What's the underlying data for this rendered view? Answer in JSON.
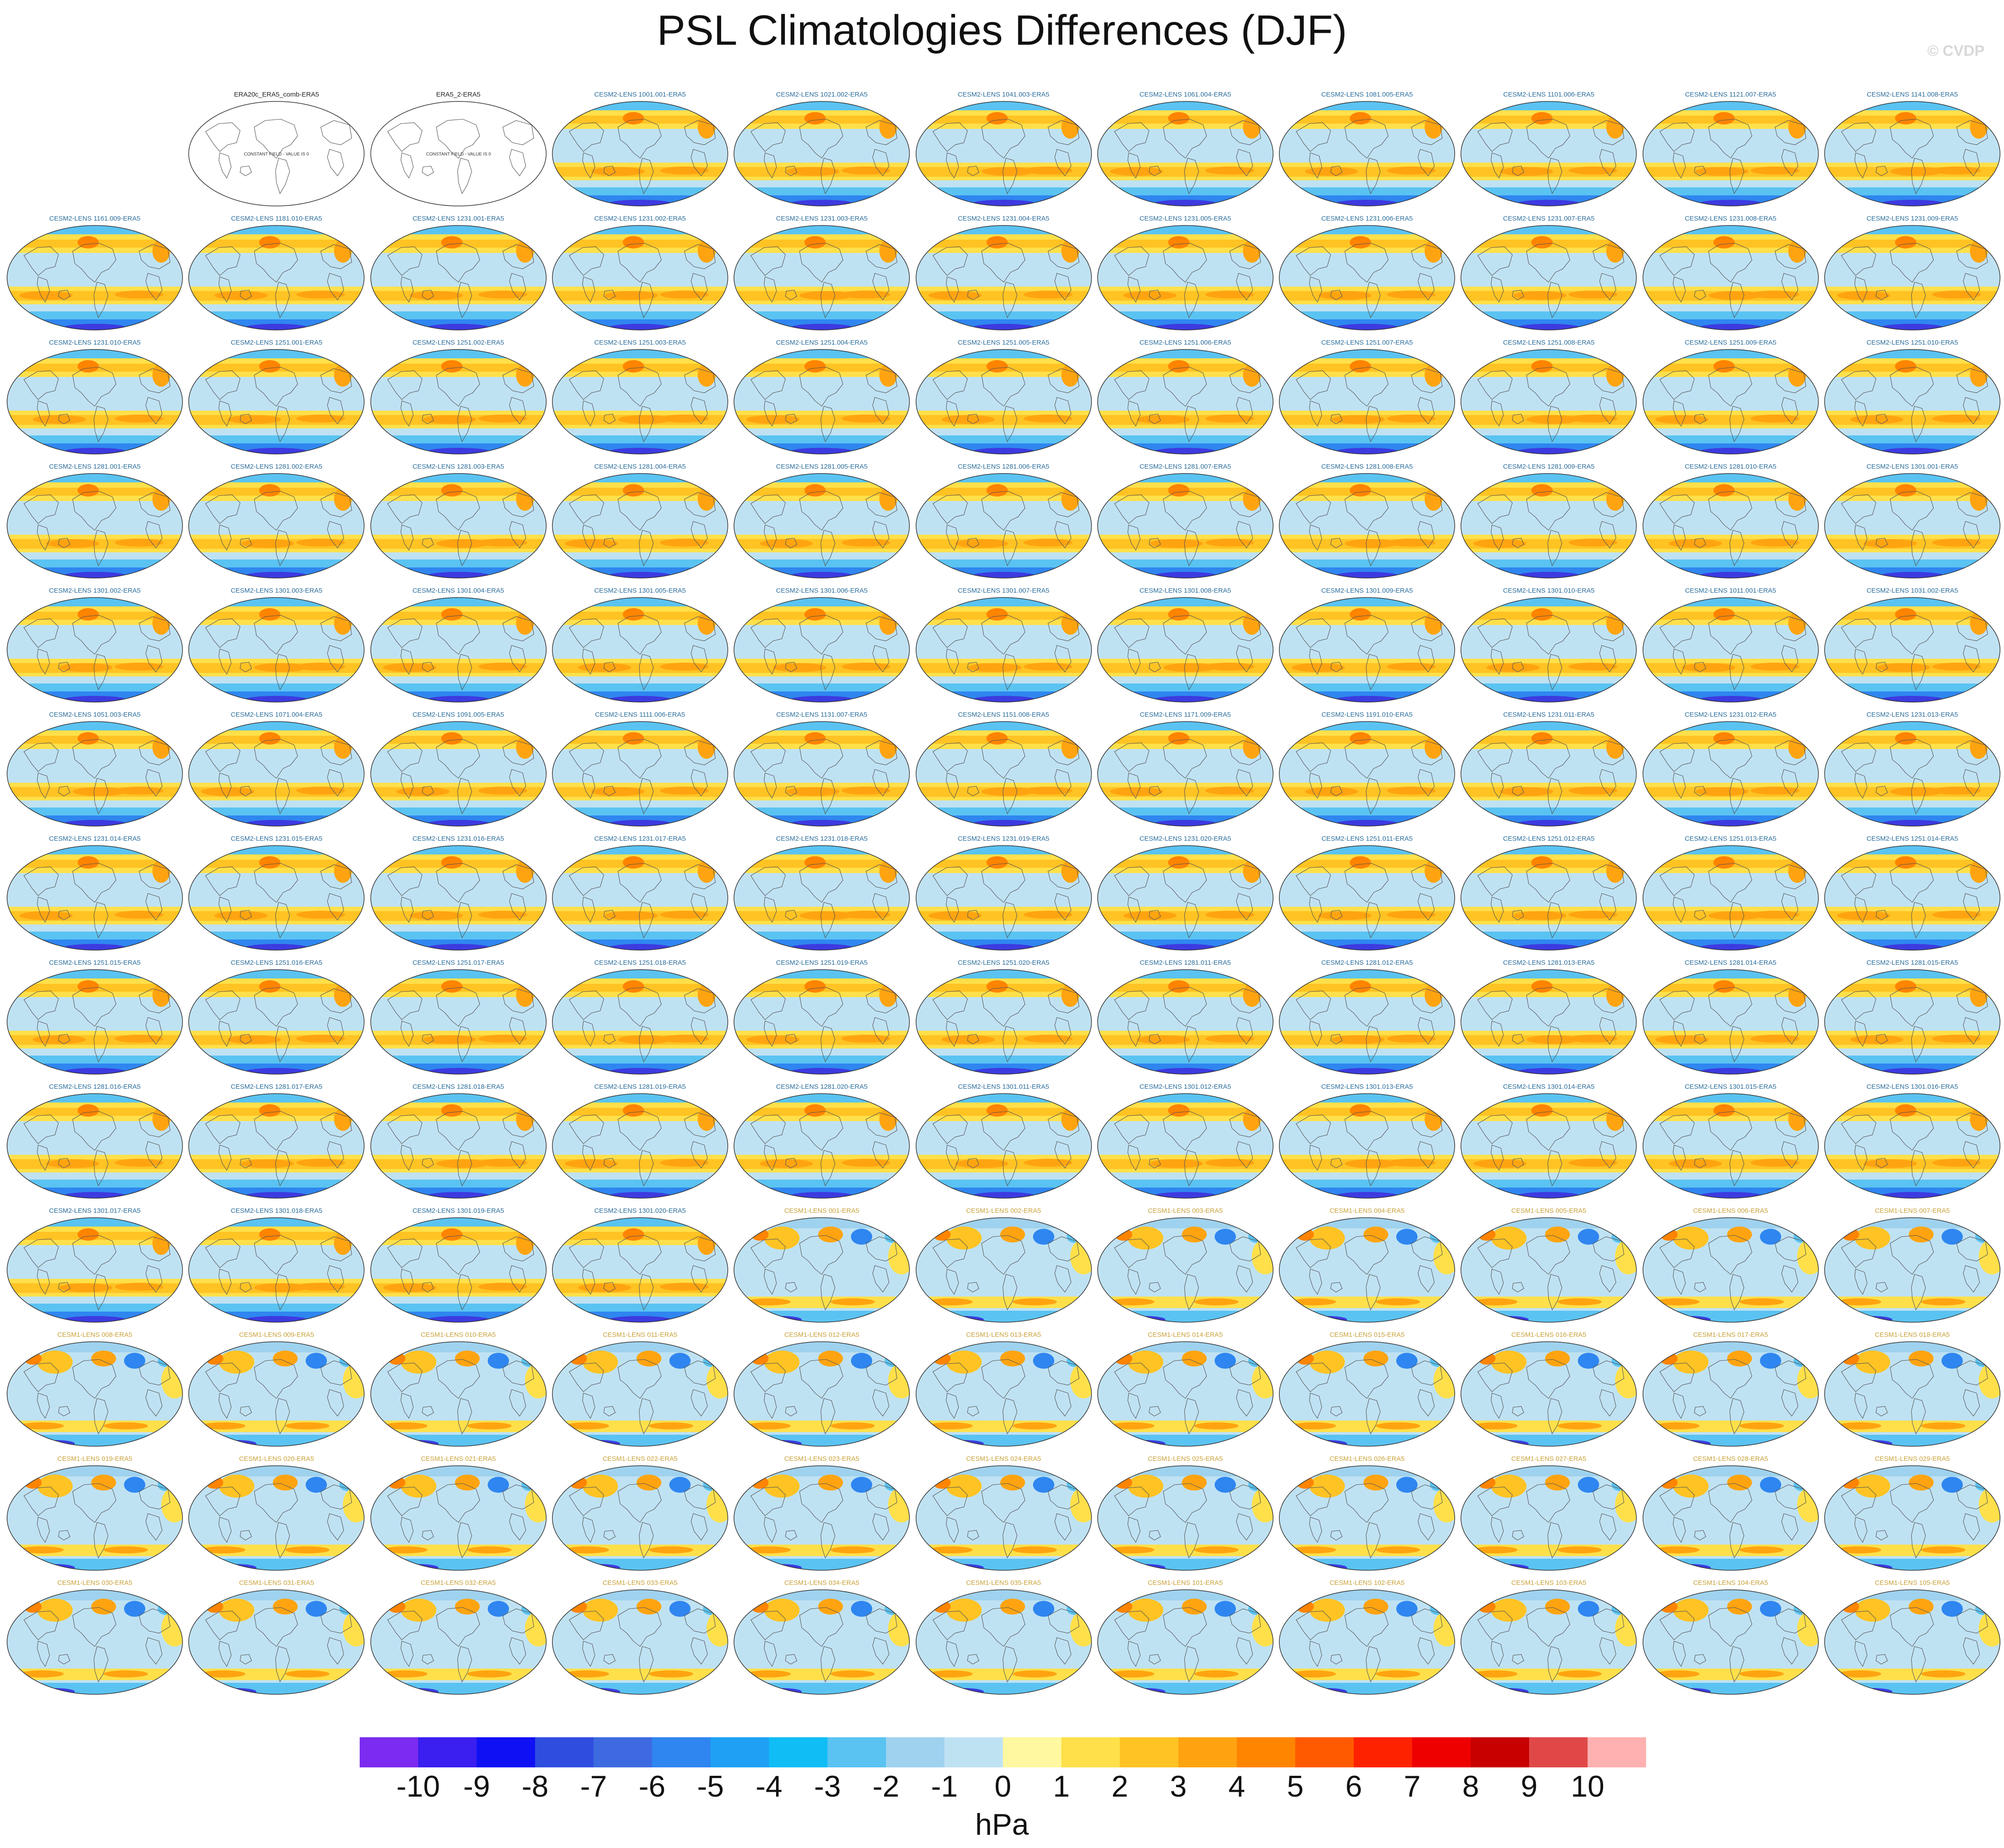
{
  "title": "PSL Climatologies Differences (DJF)",
  "watermark": "© CVDP",
  "colorbar": {
    "units": "hPa",
    "ticks": [
      "-10",
      "-9",
      "-8",
      "-7",
      "-6",
      "-5",
      "-4",
      "-3",
      "-2",
      "-1",
      "0",
      "1",
      "2",
      "3",
      "4",
      "5",
      "6",
      "7",
      "8",
      "9",
      "10"
    ],
    "colors": [
      "#7b2cf0",
      "#3a1ff0",
      "#1010f5",
      "#2f4ee0",
      "#3d6ae0",
      "#2f86f0",
      "#1fa0f5",
      "#10bdf5",
      "#5ac3f2",
      "#9ed2ee",
      "#bfe2f3",
      "#fff8a0",
      "#ffe04a",
      "#ffc323",
      "#ffa410",
      "#ff8400",
      "#ff5a00",
      "#ff2200",
      "#ee0000",
      "#c80000",
      "#e04848",
      "#ffb0b0"
    ]
  },
  "obs_text": "CONSTANT FIELD - VALUE IS 0",
  "map_colors": {
    "ocean": "#bfe2f3",
    "ocean2": "#9ed2ee",
    "ocean3": "#5ac3f2",
    "warm1": "#ffe04a",
    "warm2": "#ffc323",
    "warm3": "#ffa410",
    "warm4": "#ff8400",
    "cold": "#2f86f0",
    "deep": "#3d3ae0",
    "pale": "#fff8a0"
  },
  "panels": [
    {
      "label": "ERA20c_ERA5_comb-ERA5",
      "type": "obs"
    },
    {
      "label": "ERA5_2-ERA5",
      "type": "obs"
    },
    {
      "label": "CESM2-LENS 1001.001-ERA5",
      "type": "cesm2"
    },
    {
      "label": "CESM2-LENS 1021.002-ERA5",
      "type": "cesm2"
    },
    {
      "label": "CESM2-LENS 1041.003-ERA5",
      "type": "cesm2"
    },
    {
      "label": "CESM2-LENS 1061.004-ERA5",
      "type": "cesm2"
    },
    {
      "label": "CESM2-LENS 1081.005-ERA5",
      "type": "cesm2"
    },
    {
      "label": "CESM2-LENS 1101.006-ERA5",
      "type": "cesm2"
    },
    {
      "label": "CESM2-LENS 1121.007-ERA5",
      "type": "cesm2"
    },
    {
      "label": "CESM2-LENS 1141.008-ERA5",
      "type": "cesm2"
    },
    {
      "label": "CESM2-LENS 1161.009-ERA5",
      "type": "cesm2"
    },
    {
      "label": "CESM2-LENS 1181.010-ERA5",
      "type": "cesm2"
    },
    {
      "label": "CESM2-LENS 1231.001-ERA5",
      "type": "cesm2"
    },
    {
      "label": "CESM2-LENS 1231.002-ERA5",
      "type": "cesm2"
    },
    {
      "label": "CESM2-LENS 1231.003-ERA5",
      "type": "cesm2"
    },
    {
      "label": "CESM2-LENS 1231.004-ERA5",
      "type": "cesm2"
    },
    {
      "label": "CESM2-LENS 1231.005-ERA5",
      "type": "cesm2"
    },
    {
      "label": "CESM2-LENS 1231.006-ERA5",
      "type": "cesm2"
    },
    {
      "label": "CESM2-LENS 1231.007-ERA5",
      "type": "cesm2"
    },
    {
      "label": "CESM2-LENS 1231.008-ERA5",
      "type": "cesm2"
    },
    {
      "label": "CESM2-LENS 1231.009-ERA5",
      "type": "cesm2"
    },
    {
      "label": "CESM2-LENS 1231.010-ERA5",
      "type": "cesm2"
    },
    {
      "label": "CESM2-LENS 1251.001-ERA5",
      "type": "cesm2"
    },
    {
      "label": "CESM2-LENS 1251.002-ERA5",
      "type": "cesm2"
    },
    {
      "label": "CESM2-LENS 1251.003-ERA5",
      "type": "cesm2"
    },
    {
      "label": "CESM2-LENS 1251.004-ERA5",
      "type": "cesm2"
    },
    {
      "label": "CESM2-LENS 1251.005-ERA5",
      "type": "cesm2"
    },
    {
      "label": "CESM2-LENS 1251.006-ERA5",
      "type": "cesm2"
    },
    {
      "label": "CESM2-LENS 1251.007-ERA5",
      "type": "cesm2"
    },
    {
      "label": "CESM2-LENS 1251.008-ERA5",
      "type": "cesm2"
    },
    {
      "label": "CESM2-LENS 1251.009-ERA5",
      "type": "cesm2"
    },
    {
      "label": "CESM2-LENS 1251.010-ERA5",
      "type": "cesm2"
    },
    {
      "label": "CESM2-LENS 1281.001-ERA5",
      "type": "cesm2"
    },
    {
      "label": "CESM2-LENS 1281.002-ERA5",
      "type": "cesm2"
    },
    {
      "label": "CESM2-LENS 1281.003-ERA5",
      "type": "cesm2"
    },
    {
      "label": "CESM2-LENS 1281.004-ERA5",
      "type": "cesm2"
    },
    {
      "label": "CESM2-LENS 1281.005-ERA5",
      "type": "cesm2"
    },
    {
      "label": "CESM2-LENS 1281.006-ERA5",
      "type": "cesm2"
    },
    {
      "label": "CESM2-LENS 1281.007-ERA5",
      "type": "cesm2"
    },
    {
      "label": "CESM2-LENS 1281.008-ERA5",
      "type": "cesm2"
    },
    {
      "label": "CESM2-LENS 1281.009-ERA5",
      "type": "cesm2"
    },
    {
      "label": "CESM2-LENS 1281.010-ERA5",
      "type": "cesm2"
    },
    {
      "label": "CESM2-LENS 1301.001-ERA5",
      "type": "cesm2"
    },
    {
      "label": "CESM2-LENS 1301.002-ERA5",
      "type": "cesm2"
    },
    {
      "label": "CESM2-LENS 1301.003-ERA5",
      "type": "cesm2"
    },
    {
      "label": "CESM2-LENS 1301.004-ERA5",
      "type": "cesm2"
    },
    {
      "label": "CESM2-LENS 1301.005-ERA5",
      "type": "cesm2"
    },
    {
      "label": "CESM2-LENS 1301.006-ERA5",
      "type": "cesm2"
    },
    {
      "label": "CESM2-LENS 1301.007-ERA5",
      "type": "cesm2"
    },
    {
      "label": "CESM2-LENS 1301.008-ERA5",
      "type": "cesm2"
    },
    {
      "label": "CESM2-LENS 1301.009-ERA5",
      "type": "cesm2"
    },
    {
      "label": "CESM2-LENS 1301.010-ERA5",
      "type": "cesm2"
    },
    {
      "label": "CESM2-LENS 1011.001-ERA5",
      "type": "cesm2"
    },
    {
      "label": "CESM2-LENS 1031.002-ERA5",
      "type": "cesm2"
    },
    {
      "label": "CESM2-LENS 1051.003-ERA5",
      "type": "cesm2"
    },
    {
      "label": "CESM2-LENS 1071.004-ERA5",
      "type": "cesm2"
    },
    {
      "label": "CESM2-LENS 1091.005-ERA5",
      "type": "cesm2"
    },
    {
      "label": "CESM2-LENS 1111.006-ERA5",
      "type": "cesm2"
    },
    {
      "label": "CESM2-LENS 1131.007-ERA5",
      "type": "cesm2"
    },
    {
      "label": "CESM2-LENS 1151.008-ERA5",
      "type": "cesm2"
    },
    {
      "label": "CESM2-LENS 1171.009-ERA5",
      "type": "cesm2"
    },
    {
      "label": "CESM2-LENS 1191.010-ERA5",
      "type": "cesm2"
    },
    {
      "label": "CESM2-LENS 1231.011-ERA5",
      "type": "cesm2"
    },
    {
      "label": "CESM2-LENS 1231.012-ERA5",
      "type": "cesm2"
    },
    {
      "label": "CESM2-LENS 1231.013-ERA5",
      "type": "cesm2"
    },
    {
      "label": "CESM2-LENS 1231.014-ERA5",
      "type": "cesm2"
    },
    {
      "label": "CESM2-LENS 1231.015-ERA5",
      "type": "cesm2"
    },
    {
      "label": "CESM2-LENS 1231.016-ERA5",
      "type": "cesm2"
    },
    {
      "label": "CESM2-LENS 1231.017-ERA5",
      "type": "cesm2"
    },
    {
      "label": "CESM2-LENS 1231.018-ERA5",
      "type": "cesm2"
    },
    {
      "label": "CESM2-LENS 1231.019-ERA5",
      "type": "cesm2"
    },
    {
      "label": "CESM2-LENS 1231.020-ERA5",
      "type": "cesm2"
    },
    {
      "label": "CESM2-LENS 1251.011-ERA5",
      "type": "cesm2"
    },
    {
      "label": "CESM2-LENS 1251.012-ERA5",
      "type": "cesm2"
    },
    {
      "label": "CESM2-LENS 1251.013-ERA5",
      "type": "cesm2"
    },
    {
      "label": "CESM2-LENS 1251.014-ERA5",
      "type": "cesm2"
    },
    {
      "label": "CESM2-LENS 1251.015-ERA5",
      "type": "cesm2"
    },
    {
      "label": "CESM2-LENS 1251.016-ERA5",
      "type": "cesm2"
    },
    {
      "label": "CESM2-LENS 1251.017-ERA5",
      "type": "cesm2"
    },
    {
      "label": "CESM2-LENS 1251.018-ERA5",
      "type": "cesm2"
    },
    {
      "label": "CESM2-LENS 1251.019-ERA5",
      "type": "cesm2"
    },
    {
      "label": "CESM2-LENS 1251.020-ERA5",
      "type": "cesm2"
    },
    {
      "label": "CESM2-LENS 1281.011-ERA5",
      "type": "cesm2"
    },
    {
      "label": "CESM2-LENS 1281.012-ERA5",
      "type": "cesm2"
    },
    {
      "label": "CESM2-LENS 1281.013-ERA5",
      "type": "cesm2"
    },
    {
      "label": "CESM2-LENS 1281.014-ERA5",
      "type": "cesm2"
    },
    {
      "label": "CESM2-LENS 1281.015-ERA5",
      "type": "cesm2"
    },
    {
      "label": "CESM2-LENS 1281.016-ERA5",
      "type": "cesm2"
    },
    {
      "label": "CESM2-LENS 1281.017-ERA5",
      "type": "cesm2"
    },
    {
      "label": "CESM2-LENS 1281.018-ERA5",
      "type": "cesm2"
    },
    {
      "label": "CESM2-LENS 1281.019-ERA5",
      "type": "cesm2"
    },
    {
      "label": "CESM2-LENS 1281.020-ERA5",
      "type": "cesm2"
    },
    {
      "label": "CESM2-LENS 1301.011-ERA5",
      "type": "cesm2"
    },
    {
      "label": "CESM2-LENS 1301.012-ERA5",
      "type": "cesm2"
    },
    {
      "label": "CESM2-LENS 1301.013-ERA5",
      "type": "cesm2"
    },
    {
      "label": "CESM2-LENS 1301.014-ERA5",
      "type": "cesm2"
    },
    {
      "label": "CESM2-LENS 1301.015-ERA5",
      "type": "cesm2"
    },
    {
      "label": "CESM2-LENS 1301.016-ERA5",
      "type": "cesm2"
    },
    {
      "label": "CESM2-LENS 1301.017-ERA5",
      "type": "cesm2"
    },
    {
      "label": "CESM2-LENS 1301.018-ERA5",
      "type": "cesm2"
    },
    {
      "label": "CESM2-LENS 1301.019-ERA5",
      "type": "cesm2"
    },
    {
      "label": "CESM2-LENS 1301.020-ERA5",
      "type": "cesm2"
    },
    {
      "label": "CESM1-LENS 001-ERA5",
      "type": "cesm1"
    },
    {
      "label": "CESM1-LENS 002-ERA5",
      "type": "cesm1"
    },
    {
      "label": "CESM1-LENS 003-ERA5",
      "type": "cesm1"
    },
    {
      "label": "CESM1-LENS 004-ERA5",
      "type": "cesm1"
    },
    {
      "label": "CESM1-LENS 005-ERA5",
      "type": "cesm1"
    },
    {
      "label": "CESM1-LENS 006-ERA5",
      "type": "cesm1"
    },
    {
      "label": "CESM1-LENS 007-ERA5",
      "type": "cesm1"
    },
    {
      "label": "CESM1-LENS 008-ERA5",
      "type": "cesm1"
    },
    {
      "label": "CESM1-LENS 009-ERA5",
      "type": "cesm1"
    },
    {
      "label": "CESM1-LENS 010-ERA5",
      "type": "cesm1"
    },
    {
      "label": "CESM1-LENS 011-ERA5",
      "type": "cesm1"
    },
    {
      "label": "CESM1-LENS 012-ERA5",
      "type": "cesm1"
    },
    {
      "label": "CESM1-LENS 013-ERA5",
      "type": "cesm1"
    },
    {
      "label": "CESM1-LENS 014-ERA5",
      "type": "cesm1"
    },
    {
      "label": "CESM1-LENS 015-ERA5",
      "type": "cesm1"
    },
    {
      "label": "CESM1-LENS 016-ERA5",
      "type": "cesm1"
    },
    {
      "label": "CESM1-LENS 017-ERA5",
      "type": "cesm1"
    },
    {
      "label": "CESM1-LENS 018-ERA5",
      "type": "cesm1"
    },
    {
      "label": "CESM1-LENS 019-ERA5",
      "type": "cesm1"
    },
    {
      "label": "CESM1-LENS 020-ERA5",
      "type": "cesm1"
    },
    {
      "label": "CESM1-LENS 021-ERA5",
      "type": "cesm1"
    },
    {
      "label": "CESM1-LENS 022-ERA5",
      "type": "cesm1"
    },
    {
      "label": "CESM1-LENS 023-ERA5",
      "type": "cesm1"
    },
    {
      "label": "CESM1-LENS 024-ERA5",
      "type": "cesm1"
    },
    {
      "label": "CESM1-LENS 025-ERA5",
      "type": "cesm1"
    },
    {
      "label": "CESM1-LENS 026-ERA5",
      "type": "cesm1"
    },
    {
      "label": "CESM1-LENS 027-ERA5",
      "type": "cesm1"
    },
    {
      "label": "CESM1-LENS 028-ERA5",
      "type": "cesm1"
    },
    {
      "label": "CESM1-LENS 029-ERA5",
      "type": "cesm1"
    },
    {
      "label": "CESM1-LENS 030-ERA5",
      "type": "cesm1"
    },
    {
      "label": "CESM1-LENS 031-ERA5",
      "type": "cesm1"
    },
    {
      "label": "CESM1-LENS 032-ERA5",
      "type": "cesm1"
    },
    {
      "label": "CESM1-LENS 033-ERA5",
      "type": "cesm1"
    },
    {
      "label": "CESM1-LENS 034-ERA5",
      "type": "cesm1"
    },
    {
      "label": "CESM1-LENS 035-ERA5",
      "type": "cesm1"
    },
    {
      "label": "CESM1-LENS 101-ERA5",
      "type": "cesm1"
    },
    {
      "label": "CESM1-LENS 102-ERA5",
      "type": "cesm1"
    },
    {
      "label": "CESM1-LENS 103-ERA5",
      "type": "cesm1"
    },
    {
      "label": "CESM1-LENS 104-ERA5",
      "type": "cesm1"
    },
    {
      "label": "CESM1-LENS 105-ERA5",
      "type": "cesm1"
    }
  ]
}
